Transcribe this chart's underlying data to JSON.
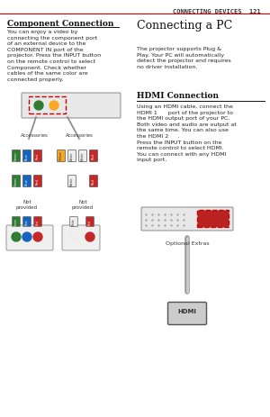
{
  "page_title": "CONNECTING DEVICES  121",
  "bg_color": "#ffffff",
  "title_line_color": "#cc0000",
  "left_section_title": "Component Connection",
  "left_body": "You can enjoy a video by\nconnecting the component port\nof an external device to the\nCOMPONENT IN port of the\nprojector. Press the INPUT button\non the remote control to select\nComponent. Check whether\ncables of the same color are\nconnected properly.",
  "accessories_label": "Accessories",
  "not_provided_label": "Not\nprovided",
  "right_section_title": "Connecting a PC",
  "right_body": "The projector supports Plug &\nPlay. Your PC will automatically\ndetect the projector and requires\nno driver installation.",
  "hdmi_title": "HDMI Connection",
  "hdmi_body": "Using an HDMI cable, connect the\nHDMI 1      port of the projector to\nthe HDMI output port of your PC.\nBoth video and audio are output at\nthe same time. You can also use\nthe HDMI 2     .\nPress the INPUT button on the\nremote control to select HDMI.\nYou can connect with any HDMI\ninput port.",
  "optional_extras": "Optional Extras",
  "hdmi_label": "HDMI",
  "connector_colors_left": [
    "#2e7d32",
    "#1565c0",
    "#c62828"
  ],
  "connector_colors_right_top": [
    "#f9a825",
    "#eeeeee",
    "#eeeeee",
    "#c62828"
  ],
  "connector_colors_right_mid": [
    "#eeeeee",
    "#c62828"
  ],
  "connector_colors_bot_left": [
    "#2e7d32",
    "#1565c0",
    "#c62828"
  ],
  "connector_colors_bot_right": [
    "#eeeeee",
    "#c62828"
  ],
  "divider_color": "#dddddd"
}
